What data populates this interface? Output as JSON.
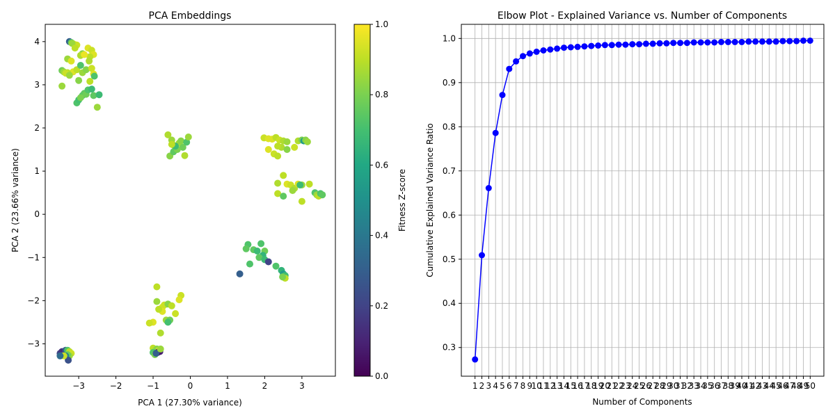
{
  "chart_data": [
    {
      "type": "scatter",
      "title": "PCA Embeddings",
      "xlabel": "PCA 1 (27.30% variance)",
      "ylabel": "PCA 2 (23.66% variance)",
      "xlim": [
        -3.9,
        3.9
      ],
      "ylim": [
        -3.75,
        4.4
      ],
      "xticks": [
        -3,
        -2,
        -1,
        0,
        1,
        2,
        3
      ],
      "yticks": [
        -3,
        -2,
        -1,
        0,
        1,
        2,
        3,
        4
      ],
      "grid": false,
      "colorbar": {
        "label": "Fitness Z-score",
        "range": [
          0.0,
          1.0
        ],
        "ticks": [
          "0.0",
          "0.2",
          "0.4",
          "0.6",
          "0.8",
          "1.0"
        ],
        "colormap": "viridis"
      },
      "points": [
        [
          -3.25,
          4.0,
          0.3
        ],
        [
          -3.2,
          3.98,
          0.72
        ],
        [
          -3.15,
          3.95,
          0.9
        ],
        [
          -3.1,
          3.93,
          0.95
        ],
        [
          -3.05,
          3.92,
          0.92
        ],
        [
          -3.18,
          3.96,
          0.85
        ],
        [
          -2.9,
          3.72,
          0.82
        ],
        [
          -2.75,
          3.85,
          0.95
        ],
        [
          -2.65,
          3.8,
          0.92
        ],
        [
          -2.6,
          3.7,
          0.95
        ],
        [
          -2.7,
          3.65,
          0.9
        ],
        [
          -2.95,
          3.68,
          0.88
        ],
        [
          -2.85,
          3.7,
          0.97
        ],
        [
          -3.3,
          3.6,
          0.85
        ],
        [
          -3.2,
          3.55,
          0.95
        ],
        [
          -3.15,
          3.3,
          0.95
        ],
        [
          -3.05,
          3.35,
          0.9
        ],
        [
          -2.9,
          3.28,
          0.85
        ],
        [
          -2.8,
          3.35,
          0.82
        ],
        [
          -2.65,
          3.38,
          0.92
        ],
        [
          -2.6,
          3.25,
          0.95
        ],
        [
          -2.58,
          3.2,
          0.72
        ],
        [
          -2.7,
          3.08,
          0.9
        ],
        [
          -3.0,
          3.1,
          0.82
        ],
        [
          -2.95,
          3.45,
          0.72
        ],
        [
          -3.3,
          3.28,
          0.9
        ],
        [
          -3.45,
          3.33,
          0.78
        ],
        [
          -3.4,
          3.3,
          0.85
        ],
        [
          -3.35,
          3.27,
          0.92
        ],
        [
          -3.45,
          2.97,
          0.85
        ],
        [
          -3.25,
          3.22,
          0.85
        ],
        [
          -3.05,
          2.58,
          0.72
        ],
        [
          -3.0,
          2.65,
          0.7
        ],
        [
          -2.9,
          2.75,
          0.72
        ],
        [
          -2.85,
          2.8,
          0.75
        ],
        [
          -2.8,
          2.78,
          0.78
        ],
        [
          -2.75,
          2.88,
          0.72
        ],
        [
          -2.6,
          2.75,
          0.75
        ],
        [
          -2.5,
          2.48,
          0.85
        ],
        [
          -2.45,
          2.77,
          0.68
        ],
        [
          -2.65,
          2.9,
          0.68
        ],
        [
          -2.95,
          2.7,
          0.8
        ],
        [
          -2.72,
          3.55,
          0.88
        ],
        [
          -3.1,
          3.85,
          0.9
        ],
        [
          -0.6,
          1.84,
          0.88
        ],
        [
          -0.5,
          1.72,
          0.85
        ],
        [
          -0.45,
          1.6,
          0.9
        ],
        [
          -0.3,
          1.65,
          0.85
        ],
        [
          -0.25,
          1.7,
          0.82
        ],
        [
          -0.2,
          1.55,
          0.78
        ],
        [
          -0.1,
          1.67,
          0.72
        ],
        [
          -0.05,
          1.79,
          0.85
        ],
        [
          -0.15,
          1.36,
          0.88
        ],
        [
          -0.55,
          1.35,
          0.82
        ],
        [
          -0.45,
          1.45,
          0.75
        ],
        [
          -0.35,
          1.5,
          0.8
        ],
        [
          -0.4,
          1.58,
          0.68
        ],
        [
          -0.5,
          1.62,
          0.9
        ],
        [
          1.98,
          1.77,
          0.92
        ],
        [
          2.1,
          1.75,
          0.95
        ],
        [
          2.2,
          1.74,
          0.95
        ],
        [
          2.3,
          1.78,
          0.9
        ],
        [
          2.4,
          1.72,
          0.92
        ],
        [
          2.5,
          1.7,
          0.88
        ],
        [
          2.6,
          1.68,
          0.85
        ],
        [
          2.1,
          1.5,
          0.95
        ],
        [
          2.25,
          1.4,
          0.92
        ],
        [
          2.35,
          1.35,
          0.9
        ],
        [
          2.45,
          1.55,
          0.88
        ],
        [
          2.6,
          1.5,
          0.82
        ],
        [
          2.8,
          1.55,
          0.92
        ],
        [
          2.9,
          1.7,
          0.88
        ],
        [
          3.0,
          1.72,
          0.8
        ],
        [
          3.05,
          1.7,
          0.55
        ],
        [
          3.1,
          1.72,
          0.82
        ],
        [
          3.15,
          1.68,
          0.85
        ],
        [
          2.35,
          1.58,
          0.9
        ],
        [
          2.35,
          0.72,
          0.88
        ],
        [
          2.5,
          0.9,
          0.9
        ],
        [
          2.6,
          0.7,
          0.95
        ],
        [
          2.7,
          0.68,
          0.92
        ],
        [
          2.8,
          0.6,
          0.88
        ],
        [
          2.9,
          0.7,
          0.95
        ],
        [
          3.0,
          0.68,
          0.85
        ],
        [
          3.2,
          0.7,
          0.9
        ],
        [
          2.95,
          0.68,
          0.68
        ],
        [
          2.35,
          0.48,
          0.9
        ],
        [
          2.5,
          0.42,
          0.75
        ],
        [
          3.0,
          0.3,
          0.9
        ],
        [
          3.35,
          0.5,
          0.72
        ],
        [
          3.4,
          0.45,
          0.85
        ],
        [
          3.45,
          0.42,
          0.9
        ],
        [
          3.5,
          0.48,
          0.72
        ],
        [
          3.55,
          0.45,
          0.75
        ],
        [
          2.75,
          0.55,
          0.85
        ],
        [
          1.55,
          -0.7,
          0.72
        ],
        [
          1.7,
          -0.82,
          0.75
        ],
        [
          1.8,
          -0.85,
          0.68
        ],
        [
          1.9,
          -0.68,
          0.72
        ],
        [
          2.0,
          -0.85,
          0.78
        ],
        [
          1.95,
          -0.95,
          0.65
        ],
        [
          1.85,
          -1.0,
          0.75
        ],
        [
          2.0,
          -1.05,
          0.68
        ],
        [
          1.6,
          -1.15,
          0.72
        ],
        [
          2.3,
          -1.2,
          0.72
        ],
        [
          2.1,
          -1.1,
          0.2
        ],
        [
          1.33,
          -1.38,
          0.3
        ],
        [
          2.45,
          -1.3,
          0.65
        ],
        [
          2.5,
          -1.38,
          0.55
        ],
        [
          2.55,
          -1.42,
          0.68
        ],
        [
          2.55,
          -1.48,
          0.9
        ],
        [
          2.48,
          -1.45,
          0.8
        ],
        [
          1.5,
          -0.8,
          0.75
        ],
        [
          -0.9,
          -1.68,
          0.9
        ],
        [
          -0.25,
          -1.88,
          0.92
        ],
        [
          -0.3,
          -1.98,
          0.95
        ],
        [
          -0.9,
          -2.02,
          0.85
        ],
        [
          -0.75,
          -2.15,
          0.95
        ],
        [
          -0.7,
          -2.1,
          0.92
        ],
        [
          -0.6,
          -2.08,
          0.82
        ],
        [
          -0.5,
          -2.12,
          0.9
        ],
        [
          -0.75,
          -2.25,
          0.95
        ],
        [
          -0.4,
          -2.3,
          0.92
        ],
        [
          -0.65,
          -2.45,
          0.85
        ],
        [
          -0.55,
          -2.45,
          0.78
        ],
        [
          -0.6,
          -2.5,
          0.7
        ],
        [
          -1.0,
          -2.5,
          0.95
        ],
        [
          -1.1,
          -2.52,
          0.92
        ],
        [
          -0.8,
          -2.75,
          0.88
        ],
        [
          -0.85,
          -2.2,
          0.9
        ],
        [
          -1.0,
          -3.1,
          0.9
        ],
        [
          -0.95,
          -3.15,
          0.88
        ],
        [
          -0.9,
          -3.12,
          0.82
        ],
        [
          -0.85,
          -3.15,
          0.92
        ],
        [
          -0.82,
          -3.18,
          0.1
        ],
        [
          -0.88,
          -3.2,
          0.05
        ],
        [
          -1.0,
          -3.2,
          0.72
        ],
        [
          -0.95,
          -3.25,
          0.8
        ],
        [
          -0.92,
          -3.22,
          0.3
        ],
        [
          -0.8,
          -3.12,
          0.85
        ],
        [
          -3.5,
          -3.22,
          0.2
        ],
        [
          -3.45,
          -3.18,
          0.15
        ],
        [
          -3.4,
          -3.2,
          0.1
        ],
        [
          -3.35,
          -3.15,
          0.3
        ],
        [
          -3.3,
          -3.15,
          0.72
        ],
        [
          -3.25,
          -3.18,
          0.9
        ],
        [
          -3.2,
          -3.22,
          0.92
        ],
        [
          -3.25,
          -3.28,
          0.85
        ],
        [
          -3.3,
          -3.25,
          0.78
        ],
        [
          -3.35,
          -3.28,
          0.45
        ],
        [
          -3.28,
          -3.38,
          0.25
        ],
        [
          -3.45,
          -3.26,
          0.2
        ],
        [
          -3.4,
          -3.28,
          0.92
        ],
        [
          -3.5,
          -3.28,
          0.35
        ]
      ]
    },
    {
      "type": "line",
      "title": "Elbow Plot - Explained Variance vs. Number of Components",
      "xlabel": "Number of Components",
      "ylabel": "Cumulative Explained Variance Ratio",
      "xlim": [
        -1.0,
        52.0
      ],
      "ylim": [
        0.235,
        1.032
      ],
      "yticks": [
        0.3,
        0.4,
        0.5,
        0.6,
        0.7,
        0.8,
        0.9,
        1.0
      ],
      "grid": true,
      "color": "#0000ff",
      "x": [
        1,
        2,
        3,
        4,
        5,
        6,
        7,
        8,
        9,
        10,
        11,
        12,
        13,
        14,
        15,
        16,
        17,
        18,
        19,
        20,
        21,
        22,
        23,
        24,
        25,
        26,
        27,
        28,
        29,
        30,
        31,
        32,
        33,
        34,
        35,
        36,
        37,
        38,
        39,
        40,
        41,
        42,
        43,
        44,
        45,
        46,
        47,
        48,
        49,
        50
      ],
      "y": [
        0.273,
        0.509,
        0.661,
        0.786,
        0.872,
        0.931,
        0.948,
        0.96,
        0.966,
        0.97,
        0.973,
        0.975,
        0.977,
        0.979,
        0.98,
        0.981,
        0.982,
        0.983,
        0.984,
        0.985,
        0.985,
        0.986,
        0.986,
        0.987,
        0.987,
        0.988,
        0.988,
        0.989,
        0.989,
        0.99,
        0.99,
        0.99,
        0.991,
        0.991,
        0.991,
        0.991,
        0.992,
        0.992,
        0.992,
        0.992,
        0.993,
        0.993,
        0.993,
        0.993,
        0.993,
        0.994,
        0.994,
        0.994,
        0.995,
        0.995
      ]
    }
  ]
}
